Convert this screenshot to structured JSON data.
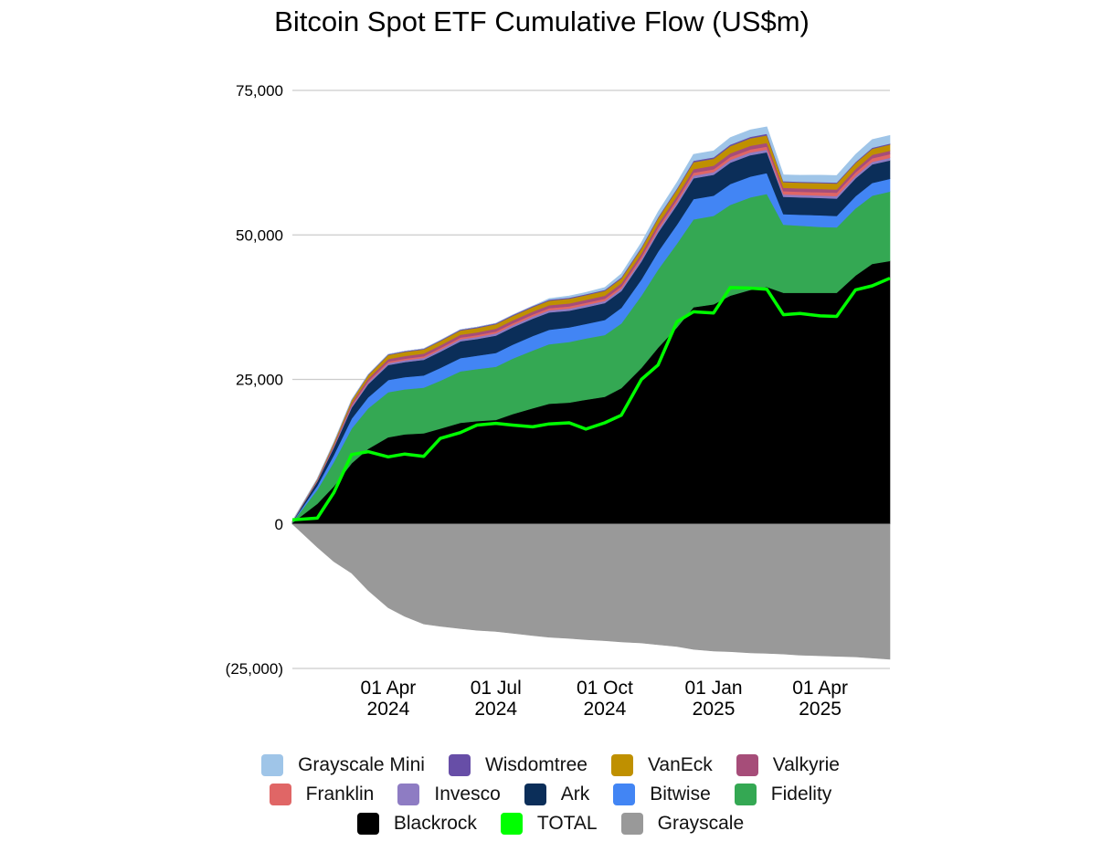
{
  "chart_data": {
    "type": "area",
    "title": "Bitcoin Spot ETF Cumulative Flow (US$m)",
    "stacked": true,
    "ylim": [
      -25000,
      75000
    ],
    "yticks": [
      75000,
      50000,
      25000,
      0,
      -25000
    ],
    "ytick_labels": [
      "75,000",
      "50,000",
      "25,000",
      "0",
      "(25,000)"
    ],
    "x_range": [
      "2024-01-11",
      "2025-05-30"
    ],
    "xticks": [
      "2024-04-01",
      "2024-07-01",
      "2024-10-01",
      "2025-01-01",
      "2025-04-01"
    ],
    "xtick_labels": [
      [
        "01 Apr",
        "2024"
      ],
      [
        "01 Jul",
        "2024"
      ],
      [
        "01 Oct",
        "2024"
      ],
      [
        "01 Jan",
        "2025"
      ],
      [
        "01 Apr",
        "2025"
      ]
    ],
    "grid": true,
    "legend_position": "bottom",
    "dates": [
      "2024-01-11",
      "2024-02-01",
      "2024-02-15",
      "2024-03-01",
      "2024-03-15",
      "2024-04-01",
      "2024-04-15",
      "2024-05-01",
      "2024-05-15",
      "2024-06-01",
      "2024-06-15",
      "2024-07-01",
      "2024-07-15",
      "2024-08-01",
      "2024-08-15",
      "2024-09-01",
      "2024-09-15",
      "2024-10-01",
      "2024-10-15",
      "2024-11-01",
      "2024-11-15",
      "2024-12-01",
      "2024-12-15",
      "2025-01-01",
      "2025-01-15",
      "2025-02-01",
      "2025-02-15",
      "2025-03-01",
      "2025-03-15",
      "2025-04-01",
      "2025-04-15",
      "2025-05-01",
      "2025-05-15",
      "2025-05-30"
    ],
    "series": [
      {
        "name": "Blackrock",
        "color": "#000000",
        "values": [
          200,
          3500,
          6500,
          10500,
          13000,
          15000,
          15500,
          15700,
          16500,
          17500,
          17800,
          18000,
          19000,
          20000,
          20800,
          21000,
          21500,
          22000,
          23500,
          27000,
          30500,
          34000,
          37500,
          38000,
          39500,
          40500,
          41000,
          40000,
          40000,
          40000,
          40000,
          43000,
          45000,
          45500
        ]
      },
      {
        "name": "Fidelity",
        "color": "#34a853",
        "values": [
          100,
          2400,
          4200,
          6000,
          7000,
          7800,
          7800,
          7900,
          8300,
          8900,
          9000,
          9200,
          9600,
          10000,
          10300,
          10500,
          10600,
          10700,
          11200,
          12500,
          13500,
          14500,
          15200,
          15300,
          15700,
          16000,
          16100,
          11800,
          11600,
          11400,
          11300,
          11600,
          11800,
          12000
        ]
      },
      {
        "name": "Bitwise",
        "color": "#4285f4",
        "values": [
          50,
          700,
          1200,
          1700,
          1900,
          2100,
          2100,
          2100,
          2200,
          2300,
          2300,
          2400,
          2400,
          2500,
          2500,
          2500,
          2500,
          2600,
          2700,
          2800,
          3100,
          3300,
          3500,
          3500,
          3600,
          3600,
          3600,
          1800,
          1900,
          2000,
          2000,
          2100,
          2200,
          2200
        ]
      },
      {
        "name": "Ark",
        "color": "#0b2e59",
        "values": [
          50,
          700,
          1300,
          1900,
          2300,
          2600,
          2600,
          2700,
          2800,
          2900,
          2900,
          3000,
          3000,
          3000,
          3000,
          2900,
          2900,
          2900,
          2900,
          3100,
          3300,
          3400,
          3600,
          3600,
          3700,
          3700,
          3600,
          3000,
          3000,
          3000,
          3000,
          3100,
          3200,
          3200
        ]
      },
      {
        "name": "Invesco",
        "color": "#8e7cc3",
        "values": [
          20,
          100,
          180,
          260,
          300,
          330,
          330,
          340,
          350,
          360,
          360,
          370,
          370,
          380,
          380,
          380,
          380,
          390,
          400,
          420,
          440,
          450,
          460,
          460,
          470,
          470,
          470,
          420,
          420,
          420,
          420,
          430,
          440,
          440
        ]
      },
      {
        "name": "Franklin",
        "color": "#e06666",
        "values": [
          10,
          80,
          120,
          180,
          220,
          250,
          260,
          270,
          280,
          290,
          300,
          320,
          330,
          340,
          350,
          360,
          370,
          380,
          390,
          420,
          450,
          480,
          500,
          500,
          510,
          520,
          520,
          560,
          560,
          570,
          580,
          600,
          620,
          630
        ]
      },
      {
        "name": "Valkyrie",
        "color": "#a64d79",
        "values": [
          30,
          150,
          250,
          350,
          420,
          460,
          470,
          470,
          480,
          490,
          490,
          500,
          500,
          510,
          510,
          520,
          520,
          530,
          540,
          560,
          590,
          610,
          630,
          630,
          640,
          640,
          640,
          580,
          580,
          580,
          580,
          590,
          600,
          600
        ]
      },
      {
        "name": "VanEck",
        "color": "#bf9000",
        "values": [
          20,
          150,
          300,
          500,
          600,
          700,
          710,
          720,
          730,
          740,
          750,
          760,
          770,
          780,
          790,
          800,
          810,
          820,
          850,
          900,
          1000,
          1100,
          1200,
          1200,
          1250,
          1280,
          1300,
          980,
          990,
          1000,
          1010,
          1030,
          1050,
          1060
        ]
      },
      {
        "name": "Wisdomtree",
        "color": "#674ea7",
        "values": [
          5,
          20,
          40,
          70,
          100,
          120,
          125,
          130,
          140,
          150,
          150,
          160,
          160,
          170,
          170,
          175,
          180,
          185,
          190,
          200,
          210,
          230,
          250,
          250,
          260,
          260,
          260,
          170,
          170,
          170,
          180,
          180,
          190,
          190
        ]
      },
      {
        "name": "Grayscale Mini",
        "color": "#9fc5e8",
        "values": [
          0,
          0,
          0,
          0,
          0,
          0,
          0,
          0,
          0,
          0,
          0,
          0,
          0,
          0,
          200,
          300,
          300,
          400,
          600,
          800,
          900,
          1000,
          1100,
          1100,
          1200,
          1200,
          1200,
          1100,
          1100,
          1200,
          1200,
          1300,
          1400,
          1400
        ]
      },
      {
        "name": "Grayscale",
        "color": "#999999",
        "values": [
          0,
          -4000,
          -6500,
          -8500,
          -11500,
          -14500,
          -16000,
          -17300,
          -17700,
          -18100,
          -18400,
          -18600,
          -18900,
          -19300,
          -19600,
          -19800,
          -20000,
          -20200,
          -20400,
          -20600,
          -20900,
          -21200,
          -21700,
          -22000,
          -22100,
          -22300,
          -22400,
          -22500,
          -22700,
          -22800,
          -22900,
          -23000,
          -23200,
          -23400
        ]
      }
    ],
    "total": {
      "name": "TOTAL",
      "color": "#00ff00",
      "values": [
        700,
        1000,
        5400,
        12000,
        12500,
        11600,
        12100,
        11700,
        14800,
        15800,
        17100,
        17400,
        17100,
        16800,
        17300,
        17500,
        16400,
        17500,
        18800,
        25000,
        27500,
        35000,
        36700,
        36500,
        40900,
        40800,
        40600,
        36200,
        36400,
        36000,
        35900,
        40500,
        41200,
        42500
      ]
    },
    "legend": [
      [
        "Grayscale Mini",
        "Wisdomtree",
        "VanEck",
        "Valkyrie"
      ],
      [
        "Franklin",
        "Invesco",
        "Ark",
        "Bitwise",
        "Fidelity"
      ],
      [
        "Blackrock",
        "TOTAL",
        "Grayscale"
      ]
    ]
  }
}
